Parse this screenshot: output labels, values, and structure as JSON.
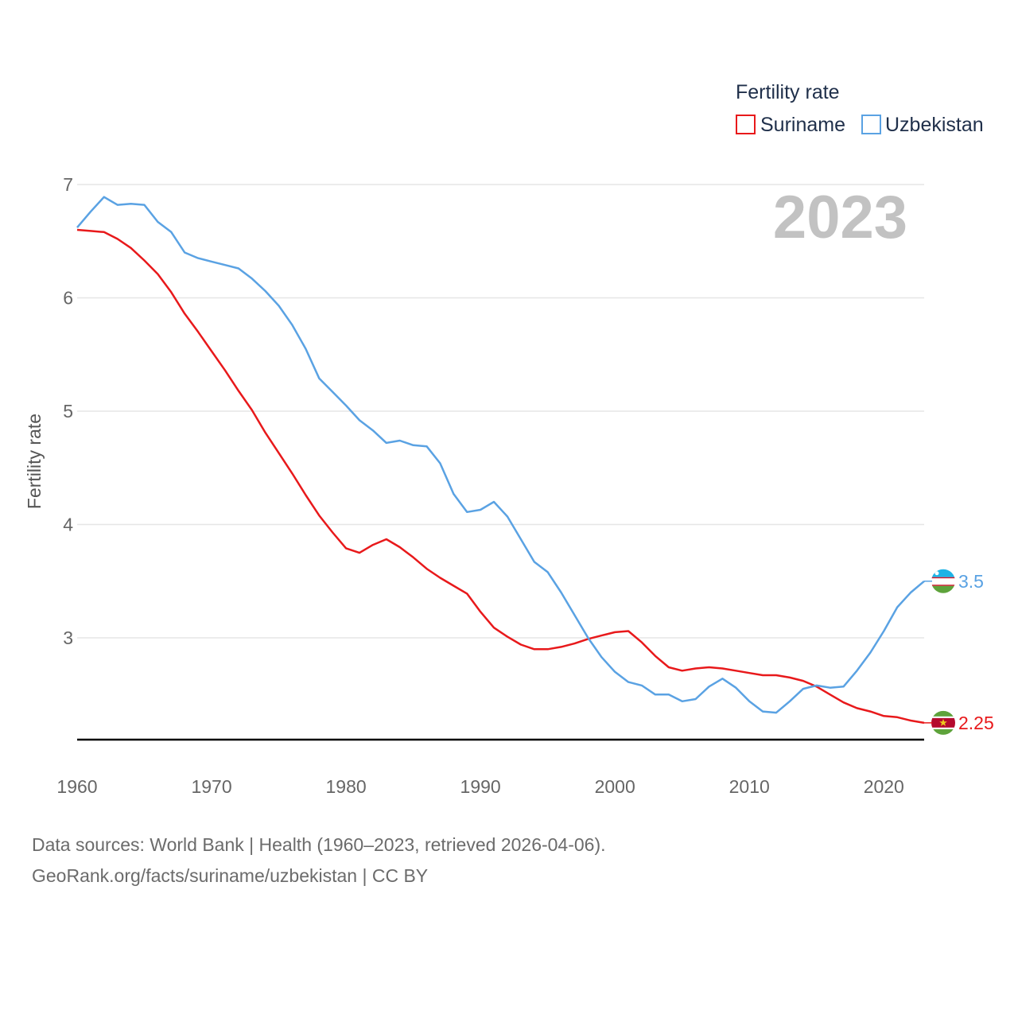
{
  "colors": {
    "suriname": "#e8191b",
    "uzbekistan": "#5aa2e3",
    "grid": "#e6e6e6",
    "axis": "#000000"
  },
  "legend": {
    "title": "Fertility rate",
    "items": [
      "Suriname",
      "Uzbekistan"
    ]
  },
  "year_label": "2023",
  "end_labels": {
    "suriname": "2.25",
    "uzbekistan": "3.5"
  },
  "source_lines": [
    "Data sources: World Bank | Health (1960–2023, retrieved 2026-04-06).",
    "GeoRank.org/facts/suriname/uzbekistan | CC BY"
  ],
  "chart_data": {
    "type": "line",
    "title": "Fertility rate",
    "xlabel": "",
    "ylabel": "Fertility rate",
    "xlim": [
      1960,
      2023
    ],
    "ylim": [
      2.1,
      7
    ],
    "x_ticks": [
      1960,
      1970,
      1980,
      1990,
      2000,
      2010,
      2020
    ],
    "y_ticks": [
      3,
      4,
      5,
      6,
      7
    ],
    "grid": true,
    "legend_position": "top-right",
    "x": [
      1960,
      1961,
      1962,
      1963,
      1964,
      1965,
      1966,
      1967,
      1968,
      1969,
      1970,
      1971,
      1972,
      1973,
      1974,
      1975,
      1976,
      1977,
      1978,
      1979,
      1980,
      1981,
      1982,
      1983,
      1984,
      1985,
      1986,
      1987,
      1988,
      1989,
      1990,
      1991,
      1992,
      1993,
      1994,
      1995,
      1996,
      1997,
      1998,
      1999,
      2000,
      2001,
      2002,
      2003,
      2004,
      2005,
      2006,
      2007,
      2008,
      2009,
      2010,
      2011,
      2012,
      2013,
      2014,
      2015,
      2016,
      2017,
      2018,
      2019,
      2020,
      2021,
      2022,
      2023
    ],
    "series": [
      {
        "name": "Suriname",
        "values": [
          6.6,
          6.59,
          6.58,
          6.52,
          6.44,
          6.33,
          6.21,
          6.05,
          5.86,
          5.7,
          5.53,
          5.36,
          5.18,
          5.01,
          4.81,
          4.63,
          4.45,
          4.26,
          4.08,
          3.93,
          3.79,
          3.75,
          3.82,
          3.87,
          3.8,
          3.71,
          3.61,
          3.53,
          3.46,
          3.39,
          3.23,
          3.09,
          3.01,
          2.94,
          2.9,
          2.9,
          2.92,
          2.95,
          2.99,
          3.02,
          3.05,
          3.06,
          2.96,
          2.84,
          2.74,
          2.71,
          2.73,
          2.74,
          2.73,
          2.71,
          2.69,
          2.67,
          2.67,
          2.65,
          2.62,
          2.57,
          2.5,
          2.43,
          2.38,
          2.35,
          2.31,
          2.3,
          2.27,
          2.25
        ]
      },
      {
        "name": "Uzbekistan",
        "values": [
          6.62,
          6.76,
          6.89,
          6.82,
          6.83,
          6.82,
          6.67,
          6.58,
          6.4,
          6.35,
          6.32,
          6.29,
          6.26,
          6.17,
          6.06,
          5.93,
          5.76,
          5.55,
          5.29,
          5.17,
          5.05,
          4.92,
          4.83,
          4.72,
          4.74,
          4.7,
          4.69,
          4.54,
          4.27,
          4.11,
          4.13,
          4.2,
          4.07,
          3.87,
          3.67,
          3.58,
          3.4,
          3.2,
          3.0,
          2.83,
          2.7,
          2.61,
          2.58,
          2.5,
          2.5,
          2.44,
          2.46,
          2.57,
          2.64,
          2.56,
          2.44,
          2.35,
          2.34,
          2.44,
          2.55,
          2.58,
          2.56,
          2.57,
          2.71,
          2.87,
          3.06,
          3.27,
          3.4,
          3.5
        ]
      }
    ]
  }
}
